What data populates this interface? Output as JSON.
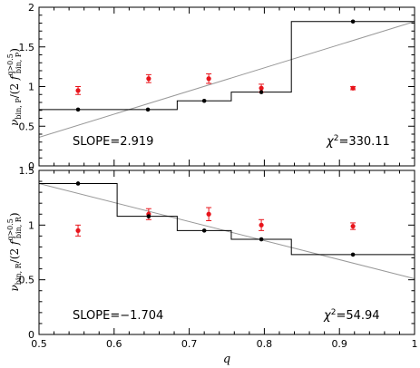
{
  "chart_data": [
    {
      "type": "scatter",
      "panel": "top",
      "ylabel": {
        "nu": "ν",
        "nu_sub": "bin, P",
        "mid": "/(2 ",
        "f": "f",
        "f_sup": "q>0.5",
        "f_sub": "bin, P",
        "close": ")"
      },
      "xlim": [
        0.5,
        1.0
      ],
      "ylim": [
        0,
        2
      ],
      "yticks": [
        "0",
        "0.5",
        "1",
        "1.5",
        "2"
      ],
      "x_tick_labels": [],
      "slope_text": "SLOPE=2.919",
      "chi_symbol": "χ",
      "chi_exp": "2",
      "chi_value": "=330.11",
      "step_edges": [
        0.5,
        0.604,
        0.684,
        0.756,
        0.836,
        1.0
      ],
      "step_values": [
        0.71,
        0.71,
        0.82,
        0.93,
        1.82
      ],
      "black_points": {
        "x": [
          0.552,
          0.645,
          0.72,
          0.796,
          0.918
        ],
        "y": [
          0.71,
          0.71,
          0.82,
          0.93,
          1.82
        ]
      },
      "red_points": {
        "x": [
          0.552,
          0.646,
          0.726,
          0.796,
          0.918
        ],
        "y": [
          0.95,
          1.1,
          1.1,
          0.98,
          0.98
        ],
        "err": [
          0.05,
          0.05,
          0.06,
          0.05,
          0.02
        ]
      },
      "fit_line": {
        "x": [
          0.5,
          1.0
        ],
        "y": [
          0.36,
          1.82
        ]
      },
      "colors": {
        "red": "#e8141b",
        "fit": "#999999",
        "step": "#000000"
      }
    },
    {
      "type": "scatter",
      "panel": "bottom",
      "xlabel": "q",
      "ylabel": {
        "nu": "ν",
        "nu_sub": "bin, R",
        "mid": "/(2 ",
        "f": "f",
        "f_sup": "q>0.5",
        "f_sub": "bin, R",
        "close": ")"
      },
      "xlim": [
        0.5,
        1.0
      ],
      "ylim": [
        0,
        1.5
      ],
      "yticks": [
        "0",
        "0.5",
        "1",
        "1.5"
      ],
      "xticks": [
        "0.5",
        "0.6",
        "0.7",
        "0.8",
        "0.9",
        "1"
      ],
      "slope_text": "SLOPE=−1.704",
      "chi_symbol": "χ",
      "chi_exp": "2",
      "chi_value": "=54.94",
      "step_edges": [
        0.5,
        0.604,
        0.684,
        0.756,
        0.836,
        1.0
      ],
      "step_values": [
        1.38,
        1.08,
        0.95,
        0.87,
        0.73
      ],
      "black_points": {
        "x": [
          0.552,
          0.646,
          0.72,
          0.796,
          0.918
        ],
        "y": [
          1.38,
          1.08,
          0.95,
          0.87,
          0.73
        ]
      },
      "red_points": {
        "x": [
          0.552,
          0.646,
          0.726,
          0.796,
          0.918
        ],
        "y": [
          0.95,
          1.1,
          1.1,
          1.0,
          0.99
        ],
        "err": [
          0.05,
          0.05,
          0.06,
          0.05,
          0.03
        ]
      },
      "fit_line": {
        "x": [
          0.5,
          1.0
        ],
        "y": [
          1.38,
          0.51
        ]
      },
      "colors": {
        "red": "#e8141b",
        "fit": "#999999",
        "step": "#000000"
      }
    }
  ]
}
